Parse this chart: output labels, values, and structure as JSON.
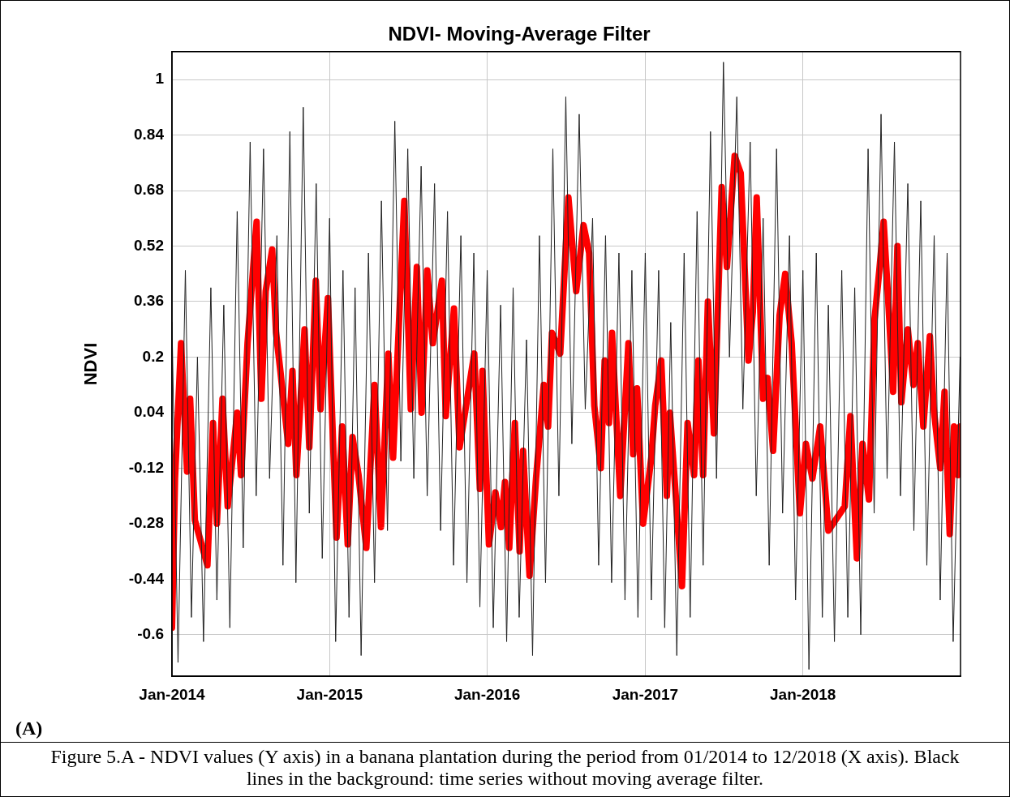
{
  "chart_data": {
    "type": "line",
    "title": "NDVI- Moving-Average Filter",
    "ylabel": "NDVI",
    "xlim": [
      "2014-01-01",
      "2019-01-01"
    ],
    "ylim": [
      -0.72,
      1.08
    ],
    "xticks": [
      {
        "value": "2014-01",
        "label": "Jan-2014"
      },
      {
        "value": "2015-01",
        "label": "Jan-2015"
      },
      {
        "value": "2016-01",
        "label": "Jan-2016"
      },
      {
        "value": "2017-01",
        "label": "Jan-2017"
      },
      {
        "value": "2018-01",
        "label": "Jan-2018"
      }
    ],
    "yticks": [
      -0.6,
      -0.44,
      -0.28,
      -0.12,
      0.04,
      0.2,
      0.36,
      0.52,
      0.68,
      0.84,
      1
    ],
    "grid": true,
    "legend": false,
    "marker": "none",
    "line_style": "solid",
    "annotations": [
      "(A)",
      "Figure 5.A - NDVI values (Y axis) in a banana plantation during the period from 01/2014 to 12/2018 (X axis). Black lines in the background: time series without moving average filter."
    ],
    "series": [
      {
        "color": "#222222",
        "x": [
          "2014-01-01",
          "2014-01-15",
          "2014-02-01",
          "2014-02-15",
          "2014-03-01",
          "2014-03-15",
          "2014-04-01",
          "2014-04-15",
          "2014-05-01",
          "2014-05-15",
          "2014-06-01",
          "2014-06-15",
          "2014-07-01",
          "2014-07-15",
          "2014-08-01",
          "2014-08-15",
          "2014-09-01",
          "2014-09-15",
          "2014-10-01",
          "2014-10-15",
          "2014-11-01",
          "2014-11-15",
          "2014-12-01",
          "2014-12-15",
          "2015-01-01",
          "2015-01-15",
          "2015-02-01",
          "2015-02-15",
          "2015-03-01",
          "2015-03-15",
          "2015-04-01",
          "2015-04-15",
          "2015-05-01",
          "2015-05-15",
          "2015-06-01",
          "2015-06-15",
          "2015-07-01",
          "2015-07-15",
          "2015-08-01",
          "2015-08-15",
          "2015-09-01",
          "2015-09-15",
          "2015-10-01",
          "2015-10-15",
          "2015-11-01",
          "2015-11-15",
          "2015-12-01",
          "2015-12-15",
          "2016-01-01",
          "2016-01-15",
          "2016-02-01",
          "2016-02-15",
          "2016-03-01",
          "2016-03-15",
          "2016-04-01",
          "2016-04-15",
          "2016-05-01",
          "2016-05-15",
          "2016-06-01",
          "2016-06-15",
          "2016-07-01",
          "2016-07-15",
          "2016-08-01",
          "2016-08-15",
          "2016-09-01",
          "2016-09-15",
          "2016-10-01",
          "2016-10-15",
          "2016-11-01",
          "2016-11-15",
          "2016-12-01",
          "2016-12-15",
          "2017-01-01",
          "2017-01-15",
          "2017-02-01",
          "2017-02-15",
          "2017-03-01",
          "2017-03-15",
          "2017-04-01",
          "2017-04-15",
          "2017-05-01",
          "2017-05-15",
          "2017-06-01",
          "2017-06-15",
          "2017-07-01",
          "2017-07-15",
          "2017-08-01",
          "2017-08-15",
          "2017-09-01",
          "2017-09-15",
          "2017-10-01",
          "2017-10-15",
          "2017-11-01",
          "2017-11-15",
          "2017-12-01",
          "2017-12-15",
          "2018-01-01",
          "2018-01-15",
          "2018-02-01",
          "2018-02-15",
          "2018-03-01",
          "2018-03-15",
          "2018-04-01",
          "2018-04-15",
          "2018-05-01",
          "2018-05-15",
          "2018-06-01",
          "2018-06-15",
          "2018-07-01",
          "2018-07-15",
          "2018-08-01",
          "2018-08-15",
          "2018-09-01",
          "2018-09-15",
          "2018-10-01",
          "2018-10-15",
          "2018-11-01",
          "2018-11-15",
          "2018-12-01",
          "2018-12-15",
          "2018-12-31"
        ],
        "values": [
          0.3,
          -0.68,
          0.45,
          -0.55,
          0.2,
          -0.62,
          0.4,
          -0.5,
          0.35,
          -0.58,
          0.62,
          -0.35,
          0.82,
          -0.2,
          0.8,
          -0.15,
          0.55,
          -0.4,
          0.85,
          -0.45,
          0.92,
          -0.25,
          0.7,
          -0.38,
          0.6,
          -0.62,
          0.45,
          -0.55,
          0.4,
          -0.66,
          0.5,
          -0.45,
          0.65,
          -0.3,
          0.88,
          -0.1,
          0.8,
          -0.15,
          0.75,
          -0.2,
          0.7,
          -0.3,
          0.62,
          -0.4,
          0.55,
          -0.45,
          0.5,
          -0.52,
          0.45,
          -0.58,
          0.35,
          -0.62,
          0.4,
          -0.55,
          0.25,
          -0.66,
          0.55,
          -0.45,
          0.8,
          -0.2,
          0.95,
          -0.05,
          0.9,
          0.05,
          0.6,
          -0.4,
          0.55,
          -0.45,
          0.5,
          -0.5,
          0.45,
          -0.55,
          0.5,
          -0.5,
          0.45,
          -0.58,
          0.3,
          -0.66,
          0.5,
          -0.55,
          0.62,
          -0.4,
          0.85,
          -0.15,
          1.05,
          0.2,
          0.95,
          0.05,
          0.82,
          -0.2,
          0.6,
          -0.4,
          0.8,
          -0.25,
          0.55,
          -0.5,
          0.45,
          -0.7,
          0.5,
          -0.55,
          0.35,
          -0.62,
          0.45,
          -0.55,
          0.4,
          -0.6,
          0.8,
          -0.25,
          0.9,
          -0.15,
          0.82,
          -0.2,
          0.7,
          -0.3,
          0.65,
          -0.4,
          0.55,
          -0.5,
          0.5,
          -0.62,
          0.2
        ]
      },
      {
        "color": "#ff0000",
        "x": [
          "2014-01-01",
          "2014-01-08",
          "2014-01-22",
          "2014-02-05",
          "2014-02-12",
          "2014-02-23",
          "2014-03-24",
          "2014-04-06",
          "2014-04-15",
          "2014-04-28",
          "2014-05-10",
          "2014-06-01",
          "2014-06-10",
          "2014-06-25",
          "2014-07-16",
          "2014-07-27",
          "2014-08-06",
          "2014-08-21",
          "2014-08-30",
          "2014-09-09",
          "2014-09-27",
          "2014-10-07",
          "2014-10-16",
          "2014-11-04",
          "2014-11-15",
          "2014-11-30",
          "2014-12-11",
          "2014-12-28",
          "2015-01-17",
          "2015-01-30",
          "2015-02-12",
          "2015-02-23",
          "2015-03-09",
          "2015-03-27",
          "2015-04-15",
          "2015-04-30",
          "2015-05-17",
          "2015-05-28",
          "2015-06-23",
          "2015-07-08",
          "2015-07-22",
          "2015-08-02",
          "2015-08-15",
          "2015-08-28",
          "2015-09-18",
          "2015-09-27",
          "2015-10-16",
          "2015-10-29",
          "2015-12-02",
          "2015-12-15",
          "2015-12-21",
          "2016-01-05",
          "2016-01-20",
          "2016-02-02",
          "2016-02-11",
          "2016-02-21",
          "2016-03-05",
          "2016-03-16",
          "2016-03-24",
          "2016-04-08",
          "2016-04-23",
          "2016-05-11",
          "2016-05-21",
          "2016-05-30",
          "2016-06-18",
          "2016-07-07",
          "2016-07-25",
          "2016-08-11",
          "2016-08-24",
          "2016-09-05",
          "2016-09-20",
          "2016-09-29",
          "2016-10-09",
          "2016-10-16",
          "2016-11-04",
          "2016-11-23",
          "2016-12-04",
          "2016-12-13",
          "2016-12-27",
          "2017-01-15",
          "2017-01-24",
          "2017-02-07",
          "2017-02-20",
          "2017-02-27",
          "2017-03-12",
          "2017-03-27",
          "2017-04-09",
          "2017-04-24",
          "2017-05-04",
          "2017-05-15",
          "2017-05-26",
          "2017-06-09",
          "2017-06-27",
          "2017-07-09",
          "2017-07-27",
          "2017-08-10",
          "2017-08-28",
          "2017-09-07",
          "2017-09-16",
          "2017-10-01",
          "2017-10-11",
          "2017-10-24",
          "2017-11-08",
          "2017-11-21",
          "2017-12-06",
          "2017-12-25",
          "2018-01-08",
          "2018-01-23",
          "2018-02-10",
          "2018-03-01",
          "2018-04-08",
          "2018-04-21",
          "2018-05-06",
          "2018-05-19",
          "2018-06-03",
          "2018-06-16",
          "2018-06-27",
          "2018-07-07",
          "2018-07-20",
          "2018-07-29",
          "2018-08-08",
          "2018-08-17",
          "2018-09-01",
          "2018-09-14",
          "2018-09-24",
          "2018-10-07",
          "2018-10-22",
          "2018-10-31",
          "2018-11-15",
          "2018-11-25",
          "2018-12-07",
          "2018-12-17",
          "2018-12-26",
          "2018-12-31"
        ],
        "values": [
          -0.58,
          -0.15,
          0.24,
          -0.13,
          0.08,
          -0.27,
          -0.4,
          0.01,
          -0.28,
          0.08,
          -0.23,
          0.04,
          -0.14,
          0.24,
          0.59,
          0.08,
          0.39,
          0.51,
          0.27,
          0.16,
          -0.05,
          0.16,
          -0.14,
          0.28,
          -0.06,
          0.42,
          0.05,
          0.37,
          -0.32,
          0.0,
          -0.34,
          -0.03,
          -0.14,
          -0.35,
          0.12,
          -0.29,
          0.21,
          -0.09,
          0.65,
          0.05,
          0.46,
          0.04,
          0.45,
          0.24,
          0.42,
          0.03,
          0.34,
          -0.06,
          0.21,
          -0.18,
          0.16,
          -0.34,
          -0.19,
          -0.29,
          -0.16,
          -0.35,
          0.01,
          -0.36,
          -0.07,
          -0.43,
          -0.15,
          0.12,
          0.0,
          0.27,
          0.21,
          0.66,
          0.39,
          0.58,
          0.5,
          0.06,
          -0.12,
          0.19,
          0.01,
          0.27,
          -0.2,
          0.24,
          -0.08,
          0.11,
          -0.28,
          -0.09,
          0.06,
          0.19,
          -0.2,
          0.04,
          -0.19,
          -0.46,
          0.01,
          -0.14,
          0.19,
          -0.14,
          0.36,
          -0.02,
          0.69,
          0.46,
          0.78,
          0.73,
          0.19,
          0.33,
          0.66,
          0.08,
          0.14,
          -0.07,
          0.32,
          0.44,
          0.24,
          -0.25,
          -0.05,
          -0.15,
          0.0,
          -0.3,
          -0.23,
          0.03,
          -0.38,
          -0.05,
          -0.21,
          0.31,
          0.45,
          0.59,
          0.31,
          0.1,
          0.52,
          0.07,
          0.28,
          0.12,
          0.24,
          0.0,
          0.26,
          0.05,
          -0.12,
          0.1,
          -0.31,
          0.0,
          -0.14,
          0.0
        ]
      }
    ]
  }
}
